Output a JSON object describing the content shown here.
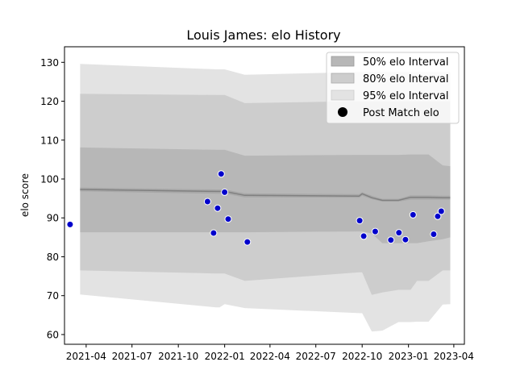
{
  "chart_data": {
    "type": "area",
    "title": "Louis James: elo History",
    "xlabel": "",
    "ylabel": "elo score",
    "ylim": [
      57.5,
      134
    ],
    "xlim": [
      "2021-02-17",
      "2023-04-22"
    ],
    "yticks": [
      60,
      70,
      80,
      90,
      100,
      110,
      120,
      130
    ],
    "xticks": [
      "2021-04",
      "2021-07",
      "2021-10",
      "2022-01",
      "2022-04",
      "2022-07",
      "2022-10",
      "2023-01",
      "2023-04"
    ],
    "legend": {
      "position": "top-right",
      "entries": [
        "50% elo Interval",
        "80% elo Interval",
        "95% elo Interval",
        "Post Match elo"
      ]
    },
    "colors": {
      "band95": "#e3e3e3",
      "band80": "#cdcdcd",
      "band50": "#b7b7b7",
      "mean_line": "#808080",
      "points": "#0000cc",
      "point_edge": "#ffffff"
    },
    "intervals": {
      "x": [
        "2021-03-20",
        "2021-12-15",
        "2021-12-22",
        "2022-01-01",
        "2022-02-10",
        "2022-09-25",
        "2022-10-01",
        "2022-10-20",
        "2022-11-10",
        "2022-12-12",
        "2023-01-05",
        "2023-01-18",
        "2023-02-10",
        "2023-03-10",
        "2023-03-25"
      ],
      "mean": [
        97.3,
        96.8,
        96.8,
        96.8,
        95.8,
        95.6,
        96.2,
        95.2,
        94.5,
        94.5,
        95.3,
        95.3,
        95.3,
        95.2,
        95.2
      ],
      "lower50": [
        96.8,
        96.2,
        96.2,
        96.2,
        95.3,
        95.2,
        95.7,
        94.8,
        94.2,
        94.2,
        94.7,
        94.7,
        94.7,
        94.7,
        94.7
      ],
      "upper50": [
        97.8,
        97.3,
        97.3,
        97.3,
        96.3,
        96.1,
        96.6,
        95.7,
        94.9,
        94.9,
        95.8,
        95.8,
        95.8,
        95.7,
        95.7
      ],
      "lower80": [
        86.3,
        86.3,
        86.3,
        86.3,
        86.3,
        86.5,
        86.5,
        86.0,
        83.5,
        83.5,
        83.5,
        83.5,
        84.0,
        84.5,
        85.0
      ],
      "upper80": [
        108.1,
        107.5,
        107.5,
        107.5,
        106.0,
        106.2,
        106.2,
        106.2,
        106.2,
        106.2,
        106.3,
        106.3,
        106.3,
        103.5,
        103.3
      ],
      "lower95": [
        76.5,
        75.7,
        75.7,
        75.7,
        73.8,
        76.0,
        76.0,
        70.2,
        70.8,
        71.5,
        71.5,
        73.8,
        73.8,
        76.5,
        76.5
      ],
      "upper95": [
        121.9,
        121.6,
        121.6,
        121.6,
        119.5,
        120.0,
        120.0,
        120.0,
        120.0,
        120.0,
        120.0,
        120.0,
        120.0,
        120.0,
        120.0
      ],
      "outer95_lower": [
        70.3,
        67.0,
        67.0,
        67.8,
        66.8,
        65.5,
        65.5,
        60.8,
        61.0,
        63.2,
        63.2,
        63.3,
        63.3,
        67.7,
        67.8
      ],
      "outer95_upper": [
        129.6,
        128.2,
        128.2,
        128.2,
        126.8,
        127.5,
        127.5,
        127.5,
        127.5,
        127.5,
        127.5,
        127.5,
        127.5,
        127.5,
        127.5
      ]
    },
    "post_match": {
      "x": [
        "2021-02-28",
        "2021-11-28",
        "2021-12-10",
        "2021-12-18",
        "2021-12-25",
        "2022-01-01",
        "2022-01-08",
        "2022-02-15",
        "2022-09-26",
        "2022-10-04",
        "2022-10-27",
        "2022-11-27",
        "2022-12-13",
        "2022-12-26",
        "2023-01-10",
        "2023-02-20",
        "2023-02-28",
        "2023-03-07"
      ],
      "y": [
        88.3,
        94.2,
        86.1,
        92.5,
        101.3,
        96.6,
        89.7,
        83.8,
        89.3,
        85.3,
        86.5,
        84.3,
        86.2,
        84.4,
        90.8,
        85.8,
        90.4,
        91.7
      ]
    }
  }
}
